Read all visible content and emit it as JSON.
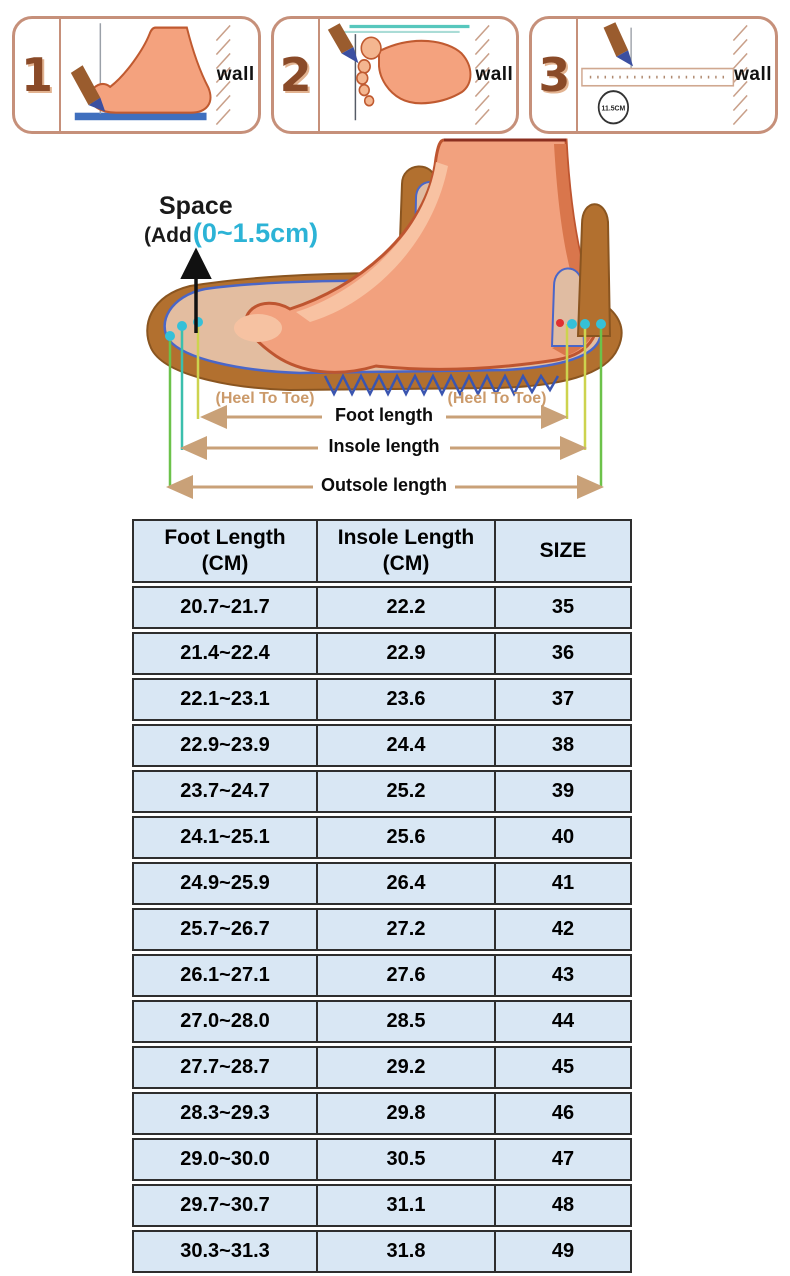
{
  "measure_steps": {
    "panels": [
      {
        "number": "1",
        "wall_label": "wall"
      },
      {
        "number": "2",
        "wall_label": "wall"
      },
      {
        "number": "3",
        "wall_label": "wall",
        "ruler_mark": "11.5CM"
      }
    ]
  },
  "diagram": {
    "space_label": "Space",
    "add_prefix": "(Add",
    "add_range": "(0~1.5cm)",
    "heel_to_toe_left": "(Heel To Toe)",
    "heel_to_toe_right": "(Heel To Toe)",
    "foot_length_label": "Foot length",
    "insole_length_label": "Insole length",
    "outsole_length_label": "Outsole length"
  },
  "size_table": {
    "headers": [
      {
        "line1": "Foot Length",
        "line2": "(CM)"
      },
      {
        "line1": "Insole Length",
        "line2": "(CM)"
      },
      {
        "line1": "SIZE",
        "line2": ""
      }
    ],
    "rows": [
      {
        "foot_length": "20.7~21.7",
        "insole_length": "22.2",
        "size": "35"
      },
      {
        "foot_length": "21.4~22.4",
        "insole_length": "22.9",
        "size": "36"
      },
      {
        "foot_length": "22.1~23.1",
        "insole_length": "23.6",
        "size": "37"
      },
      {
        "foot_length": "22.9~23.9",
        "insole_length": "24.4",
        "size": "38"
      },
      {
        "foot_length": "23.7~24.7",
        "insole_length": "25.2",
        "size": "39"
      },
      {
        "foot_length": "24.1~25.1",
        "insole_length": "25.6",
        "size": "40"
      },
      {
        "foot_length": "24.9~25.9",
        "insole_length": "26.4",
        "size": "41"
      },
      {
        "foot_length": "25.7~26.7",
        "insole_length": "27.2",
        "size": "42"
      },
      {
        "foot_length": "26.1~27.1",
        "insole_length": "27.6",
        "size": "43"
      },
      {
        "foot_length": "27.0~28.0",
        "insole_length": "28.5",
        "size": "44"
      },
      {
        "foot_length": "27.7~28.7",
        "insole_length": "29.2",
        "size": "45"
      },
      {
        "foot_length": "28.3~29.3",
        "insole_length": "29.8",
        "size": "46"
      },
      {
        "foot_length": "29.0~30.0",
        "insole_length": "30.5",
        "size": "47"
      },
      {
        "foot_length": "29.7~30.7",
        "insole_length": "31.1",
        "size": "48"
      },
      {
        "foot_length": "30.3~31.3",
        "insole_length": "31.8",
        "size": "49"
      }
    ]
  },
  "chart_data": {
    "type": "table",
    "columns": [
      "Foot Length (CM)",
      "Insole Length (CM)",
      "SIZE"
    ],
    "rows": [
      [
        "20.7~21.7",
        "22.2",
        "35"
      ],
      [
        "21.4~22.4",
        "22.9",
        "36"
      ],
      [
        "22.1~23.1",
        "23.6",
        "37"
      ],
      [
        "22.9~23.9",
        "24.4",
        "38"
      ],
      [
        "23.7~24.7",
        "25.2",
        "39"
      ],
      [
        "24.1~25.1",
        "25.6",
        "40"
      ],
      [
        "24.9~25.9",
        "26.4",
        "41"
      ],
      [
        "25.7~26.7",
        "27.2",
        "42"
      ],
      [
        "26.1~27.1",
        "27.6",
        "43"
      ],
      [
        "27.0~28.0",
        "28.5",
        "44"
      ],
      [
        "27.7~28.7",
        "29.2",
        "45"
      ],
      [
        "28.3~29.3",
        "29.8",
        "46"
      ],
      [
        "29.0~30.0",
        "30.5",
        "47"
      ],
      [
        "29.7~30.7",
        "31.1",
        "48"
      ],
      [
        "30.3~31.3",
        "31.8",
        "49"
      ]
    ]
  },
  "colors": {
    "table_cell_bg": "#d9e7f4",
    "table_border": "#2e2e2e",
    "panel_border": "#c6907a",
    "accent_cyan": "#2cb3d6",
    "tan_arrow": "#c9a178",
    "foot_skin": "#f2a17e",
    "sole_brown": "#b2702f",
    "insole_tan": "#e3bda0",
    "outline_blue": "#4a66c8"
  }
}
